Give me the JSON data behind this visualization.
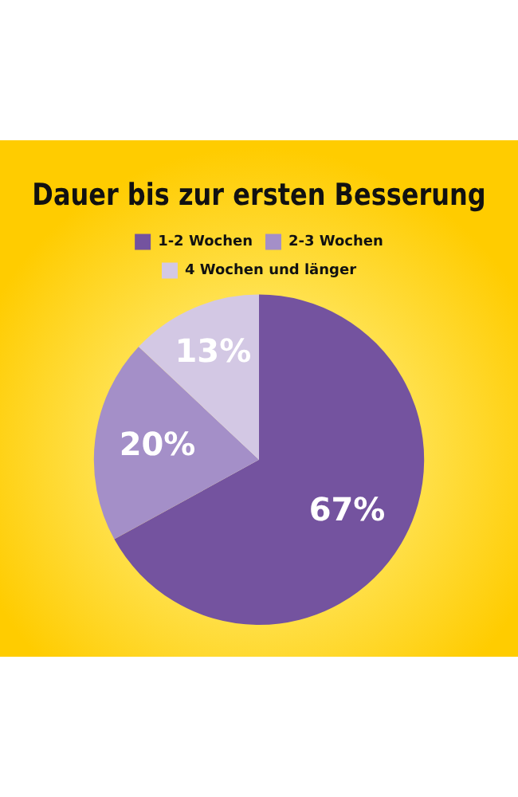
{
  "chart_data": {
    "type": "pie",
    "title": "Dauer bis zur ersten Besserung",
    "categories": [
      "1-2 Wochen",
      "2-3 Wochen",
      "4 Wochen und länger"
    ],
    "values": [
      67,
      20,
      13
    ],
    "colors": [
      "#74539f",
      "#a48fc8",
      "#d3c8e4"
    ],
    "value_labels": [
      "67%",
      "20%",
      "13%"
    ],
    "legend": "top"
  }
}
